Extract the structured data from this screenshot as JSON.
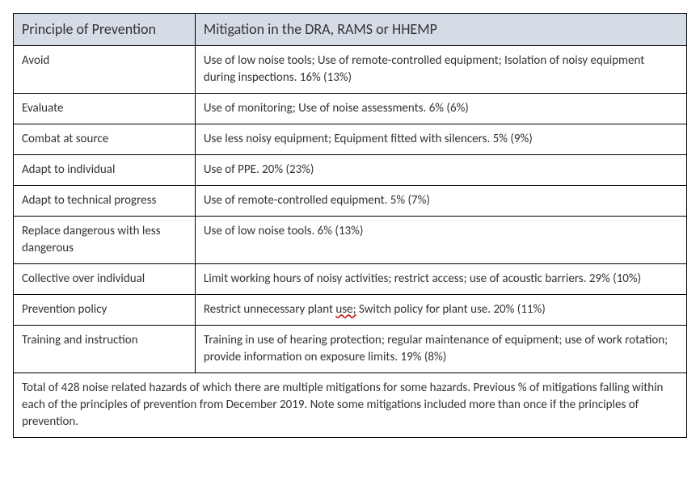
{
  "table": {
    "headers": {
      "col1": "Principle of Prevention",
      "col2": "Mitigation in the DRA, RAMS or HHEMP"
    },
    "rows": [
      {
        "principle": "Avoid",
        "mitigation": "Use of low noise tools; Use of remote-controlled equipment; Isolation of noisy equipment during inspections. 16% (13%)"
      },
      {
        "principle": "Evaluate",
        "mitigation": "Use of monitoring; Use of noise assessments. 6% (6%)"
      },
      {
        "principle": "Combat at source",
        "mitigation": "Use less noisy equipment; Equipment fitted with silencers. 5% (9%)"
      },
      {
        "principle": "Adapt to individual",
        "mitigation": "Use of PPE. 20% (23%)"
      },
      {
        "principle": "Adapt to technical progress",
        "mitigation": "Use of remote-controlled equipment. 5% (7%)"
      },
      {
        "principle": "Replace dangerous with less dangerous",
        "mitigation": "Use of low noise tools. 6% (13%)"
      },
      {
        "principle": "Collective over individual",
        "mitigation": "Limit working hours of noisy activities; restrict access; use of acoustic barriers. 29% (10%)"
      },
      {
        "principle": "Prevention policy",
        "mitigation_prefix": "Restrict unnecessary plant ",
        "mitigation_underlined": "use;",
        "mitigation_suffix": " Switch policy for plant use. 20% (11%)"
      },
      {
        "principle": "Training and instruction",
        "mitigation": "Training in use of hearing protection; regular maintenance of equipment; use of work rotation; provide information on exposure limits. 19% (8%)"
      }
    ],
    "footer": "Total of 428 noise related hazards of which there are multiple mitigations for some hazards. Previous % of mitigations falling within each of the principles of prevention from December 2019. Note some mitigations included more than once if the principles of prevention."
  }
}
